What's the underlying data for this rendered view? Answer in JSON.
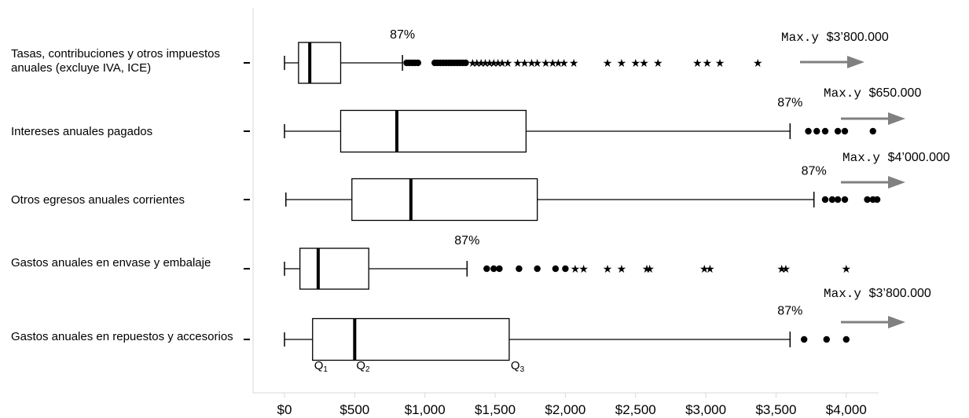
{
  "chart_data": {
    "type": "boxplot",
    "orientation": "horizontal",
    "xlim": [
      0,
      4000
    ],
    "x_ticks": [
      {
        "value": 0,
        "label": "$0"
      },
      {
        "value": 500,
        "label": "$500"
      },
      {
        "value": 1000,
        "label": "$1,000"
      },
      {
        "value": 1500,
        "label": "$1,500"
      },
      {
        "value": 2000,
        "label": "$2,000"
      },
      {
        "value": 2500,
        "label": "$2,500"
      },
      {
        "value": 3000,
        "label": "$3,000"
      },
      {
        "value": 3500,
        "label": "$3,500"
      },
      {
        "value": 4000,
        "label": "$4,000"
      }
    ],
    "percentile_label": "87%",
    "max_prefix": "Max.y",
    "quartile_labels": [
      {
        "q": "Q",
        "sub": "1",
        "value": 200
      },
      {
        "q": "Q",
        "sub": "2",
        "value": 500
      },
      {
        "q": "Q",
        "sub": "3",
        "value": 1600
      }
    ],
    "series": [
      {
        "name": "Tasas, contribuciones y otros impuestos anuales (excluye IVA, ICE)",
        "whisker_low": 0,
        "q1": 100,
        "median": 180,
        "q3": 400,
        "whisker_high": 840,
        "outliers_dot": [
          870,
          890,
          910,
          930,
          950,
          1070,
          1090,
          1110,
          1130,
          1150,
          1170,
          1190,
          1210,
          1230,
          1250,
          1270,
          1290
        ],
        "outliers_star": [
          1340,
          1370,
          1400,
          1430,
          1460,
          1490,
          1520,
          1550,
          1590,
          1660,
          1710,
          1760,
          1800,
          1860,
          1910,
          1950,
          1990,
          2060,
          2300,
          2400,
          2500,
          2560,
          2660,
          2940,
          3010,
          3100,
          3370
        ],
        "max_text": "$3’800.000"
      },
      {
        "name": "Intereses anuales pagados",
        "whisker_low": 0,
        "q1": 400,
        "median": 800,
        "q3": 1720,
        "whisker_high": 3600,
        "outliers_dot": [
          3730,
          3790,
          3850,
          3940,
          3990,
          4190
        ],
        "outliers_star": [],
        "max_text": "$650.000"
      },
      {
        "name": "Otros egresos anuales corrientes",
        "whisker_low": 10,
        "q1": 480,
        "median": 900,
        "q3": 1800,
        "whisker_high": 3770,
        "outliers_dot": [
          3850,
          3900,
          3940,
          3990,
          4150,
          4190,
          4220
        ],
        "outliers_star": [],
        "max_text": "$4’000.000"
      },
      {
        "name": "Gastos anuales en envase y embalaje",
        "whisker_low": 0,
        "q1": 110,
        "median": 240,
        "q3": 600,
        "whisker_high": 1300,
        "outliers_dot": [
          1440,
          1490,
          1530,
          1670,
          1800,
          1930,
          2000
        ],
        "outliers_star": [
          2070,
          2130,
          2300,
          2400,
          2580,
          2600,
          2990,
          3030,
          3540,
          3570,
          4000
        ],
        "max_text": ""
      },
      {
        "name": "Gastos anuales en repuestos y accesorios",
        "whisker_low": 0,
        "q1": 200,
        "median": 500,
        "q3": 1600,
        "whisker_high": 3600,
        "outliers_dot": [
          3700,
          3860,
          4000
        ],
        "outliers_star": [],
        "max_text": "$3’800.000"
      }
    ]
  },
  "category_labels": [
    "Tasas, contribuciones y otros impuestos anuales (excluye IVA, ICE)",
    "Intereses anuales pagados",
    "Otros egresos anuales corrientes",
    "Gastos anuales en envase y embalaje",
    "Gastos anuales en repuestos y accesorios"
  ],
  "colors": {
    "box_stroke": "#000000",
    "arrow": "#808080",
    "axis": "#d9d9d9"
  }
}
